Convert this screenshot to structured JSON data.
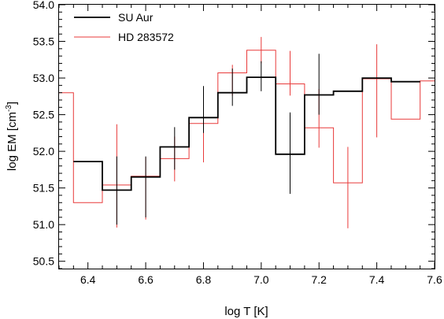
{
  "chart_data": {
    "type": "line",
    "step": true,
    "xlabel": "log T [K]",
    "ylabel": {
      "main": "log EM [cm",
      "sup": "-3",
      "close": "]"
    },
    "xlim": [
      6.3,
      7.6
    ],
    "ylim": [
      50.4,
      54.0
    ],
    "x_ticks": [
      "6.4",
      "6.6",
      "6.8",
      "7.0",
      "7.2",
      "7.4",
      "7.6"
    ],
    "y_ticks": [
      "50.5",
      "51.0",
      "51.5",
      "52.0",
      "52.5",
      "53.0",
      "53.5",
      "54.0"
    ],
    "legend_position": "top-left",
    "series": [
      {
        "name": "SU Aur",
        "color": "#000000",
        "x": [
          6.4,
          6.5,
          6.6,
          6.7,
          6.8,
          6.9,
          7.0,
          7.1,
          7.2,
          7.3,
          7.4,
          7.5
        ],
        "y": [
          51.86,
          51.47,
          51.65,
          52.06,
          52.46,
          52.8,
          53.01,
          51.96,
          52.77,
          52.82,
          53.0,
          52.95
        ],
        "err_x": [
          6.5,
          6.6,
          6.7,
          6.8,
          6.9,
          7.0,
          7.1,
          7.2
        ],
        "err_low": [
          51.0,
          51.1,
          51.75,
          52.25,
          52.62,
          52.82,
          51.42,
          52.5
        ],
        "err_high": [
          51.93,
          51.93,
          52.33,
          52.89,
          53.13,
          53.23,
          52.53,
          53.33
        ]
      },
      {
        "name": "HD 283572",
        "color": "#e83a3a",
        "x": [
          6.3,
          6.4,
          6.5,
          6.6,
          6.7,
          6.8,
          6.9,
          7.0,
          7.1,
          7.2,
          7.3,
          7.4,
          7.5,
          7.6
        ],
        "y": [
          52.8,
          51.3,
          51.54,
          51.66,
          51.9,
          52.38,
          53.07,
          53.38,
          52.92,
          52.32,
          51.57,
          52.99,
          52.44,
          52.96
        ],
        "err_x": [
          6.5,
          6.6,
          6.7,
          6.8,
          6.9,
          7.0,
          7.1,
          7.2,
          7.3,
          7.4
        ],
        "err_low": [
          50.96,
          51.07,
          51.59,
          51.85,
          52.76,
          53.2,
          52.76,
          52.05,
          50.95,
          52.19
        ],
        "err_high": [
          52.37,
          51.92,
          52.2,
          52.74,
          53.18,
          53.56,
          53.37,
          52.85,
          52.06,
          53.46
        ]
      }
    ]
  }
}
